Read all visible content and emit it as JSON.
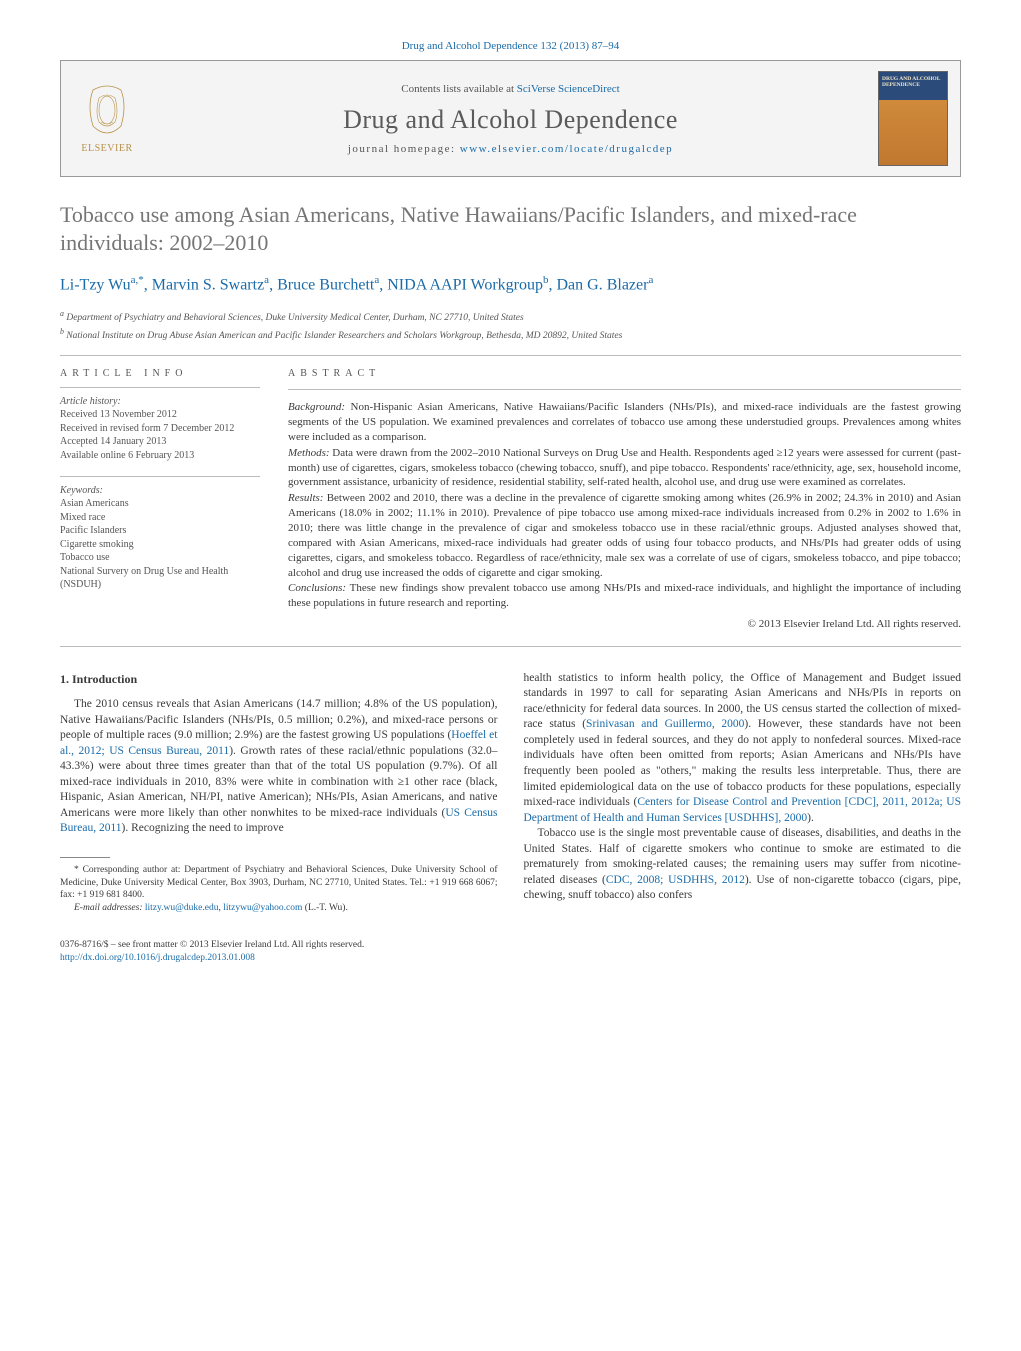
{
  "journal_ref": "Drug and Alcohol Dependence 132 (2013) 87–94",
  "header": {
    "contents_text": "Contents lists available at ",
    "contents_link": "SciVerse ScienceDirect",
    "journal_title": "Drug and Alcohol Dependence",
    "homepage_text": "journal homepage: ",
    "homepage_link": "www.elsevier.com/locate/drugalcdep",
    "cover_text": "DRUG AND ALCOHOL DEPENDENCE"
  },
  "article": {
    "title": "Tobacco use among Asian Americans, Native Hawaiians/Pacific Islanders, and mixed-race individuals: 2002–2010",
    "authors_html": "Li-Tzy Wu<sup>a,*</sup>, Marvin S. Swartz<sup>a</sup>, Bruce Burchett<sup>a</sup>, NIDA AAPI Workgroup<sup>b</sup>, Dan G. Blazer<sup>a</sup>",
    "affiliations": {
      "a": "Department of Psychiatry and Behavioral Sciences, Duke University Medical Center, Durham, NC 27710, United States",
      "b": "National Institute on Drug Abuse Asian American and Pacific Islander Researchers and Scholars Workgroup, Bethesda, MD 20892, United States"
    }
  },
  "article_info": {
    "heading": "article info",
    "history_label": "Article history:",
    "history": [
      "Received 13 November 2012",
      "Received in revised form 7 December 2012",
      "Accepted 14 January 2013",
      "Available online 6 February 2013"
    ],
    "keywords_label": "Keywords:",
    "keywords": [
      "Asian Americans",
      "Mixed race",
      "Pacific Islanders",
      "Cigarette smoking",
      "Tobacco use",
      "National Survery on Drug Use and Health (NSDUH)"
    ]
  },
  "abstract": {
    "heading": "abstract",
    "background_label": "Background:",
    "background": " Non-Hispanic Asian Americans, Native Hawaiians/Pacific Islanders (NHs/PIs), and mixed-race individuals are the fastest growing segments of the US population. We examined prevalences and correlates of tobacco use among these understudied groups. Prevalences among whites were included as a comparison.",
    "methods_label": "Methods:",
    "methods": " Data were drawn from the 2002–2010 National Surveys on Drug Use and Health. Respondents aged ≥12 years were assessed for current (past-month) use of cigarettes, cigars, smokeless tobacco (chewing tobacco, snuff), and pipe tobacco. Respondents' race/ethnicity, age, sex, household income, government assistance, urbanicity of residence, residential stability, self-rated health, alcohol use, and drug use were examined as correlates.",
    "results_label": "Results:",
    "results": " Between 2002 and 2010, there was a decline in the prevalence of cigarette smoking among whites (26.9% in 2002; 24.3% in 2010) and Asian Americans (18.0% in 2002; 11.1% in 2010). Prevalence of pipe tobacco use among mixed-race individuals increased from 0.2% in 2002 to 1.6% in 2010; there was little change in the prevalence of cigar and smokeless tobacco use in these racial/ethnic groups. Adjusted analyses showed that, compared with Asian Americans, mixed-race individuals had greater odds of using four tobacco products, and NHs/PIs had greater odds of using cigarettes, cigars, and smokeless tobacco. Regardless of race/ethnicity, male sex was a correlate of use of cigars, smokeless tobacco, and pipe tobacco; alcohol and drug use increased the odds of cigarette and cigar smoking.",
    "conclusions_label": "Conclusions:",
    "conclusions": " These new findings show prevalent tobacco use among NHs/PIs and mixed-race individuals, and highlight the importance of including these populations in future research and reporting.",
    "copyright": "© 2013 Elsevier Ireland Ltd. All rights reserved."
  },
  "body": {
    "section_heading": "1. Introduction",
    "left_p1a": "The 2010 census reveals that Asian Americans (14.7 million; 4.8% of the US population), Native Hawaiians/Pacific Islanders (NHs/PIs, 0.5 million; 0.2%), and mixed-race persons or people of multiple races (9.0 million; 2.9%) are the fastest growing US populations (",
    "cite1": "Hoeffel et al., 2012; US Census Bureau, 2011",
    "left_p1b": "). Growth rates of these racial/ethnic populations (32.0–43.3%) were about three times greater than that of the total US population (9.7%). Of all mixed-race individuals in 2010, 83% were white in combination with ≥1 other race (black, Hispanic, Asian American, NH/PI, native American); NHs/PIs, Asian Americans, and native Americans were more likely than other nonwhites to be mixed-race individuals (",
    "cite2": "US Census Bureau, 2011",
    "left_p1c": "). Recognizing the need to improve",
    "right_p1a": "health statistics to inform health policy, the Office of Management and Budget issued standards in 1997 to call for separating Asian Americans and NHs/PIs in reports on race/ethnicity for federal data sources. In 2000, the US census started the collection of mixed-race status (",
    "cite3": "Srinivasan and Guillermo, 2000",
    "right_p1b": "). However, these standards have not been completely used in federal sources, and they do not apply to nonfederal sources. Mixed-race individuals have often been omitted from reports; Asian Americans and NHs/PIs have frequently been pooled as \"others,\" making the results less interpretable. Thus, there are limited epidemiological data on the use of tobacco products for these populations, especially mixed-race individuals (",
    "cite4": "Centers for Disease Control and Prevention [CDC], 2011, 2012a; US Department of Health and Human Services [USDHHS], 2000",
    "right_p1c": ").",
    "right_p2a": "Tobacco use is the single most preventable cause of diseases, disabilities, and deaths in the United States. Half of cigarette smokers who continue to smoke are estimated to die prematurely from smoking-related causes; the remaining users may suffer from nicotine-related diseases (",
    "cite5": "CDC, 2008; USDHHS, 2012",
    "right_p2b": "). Use of non-cigarette tobacco (cigars, pipe, chewing, snuff tobacco) also confers"
  },
  "footnotes": {
    "corresp": "* Corresponding author at: Department of Psychiatry and Behavioral Sciences, Duke University School of Medicine, Duke University Medical Center, Box 3903, Durham, NC 27710, United States. Tel.: +1 919 668 6067; fax: +1 919 681 8400.",
    "email_label": "E-mail addresses:",
    "email1": "litzy.wu@duke.edu",
    "email_sep": ", ",
    "email2": "litzywu@yahoo.com",
    "email_suffix": " (L.-T. Wu)."
  },
  "footer": {
    "line1": "0376-8716/$ – see front matter © 2013 Elsevier Ireland Ltd. All rights reserved.",
    "doi": "http://dx.doi.org/10.1016/j.drugalcdep.2013.01.008"
  },
  "colors": {
    "link": "#1a6ba8",
    "text": "#3a3a3a",
    "title_gray": "#757575",
    "header_bg": "#f4f4f4",
    "border": "#bbb"
  }
}
